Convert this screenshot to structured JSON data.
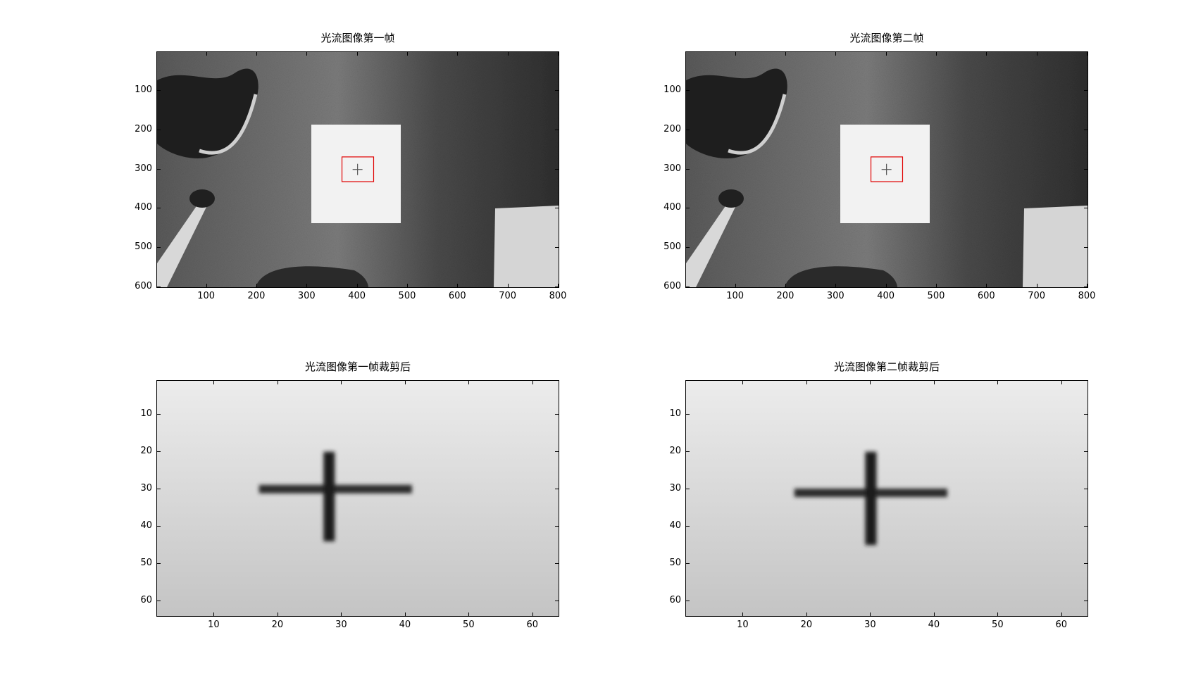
{
  "figure": {
    "panels": [
      {
        "id": "frame1",
        "title": "光流图像第一帧",
        "kind": "full",
        "x_ticks": [
          "100",
          "200",
          "300",
          "400",
          "500",
          "600",
          "700",
          "800"
        ],
        "y_ticks": [
          "100",
          "200",
          "300",
          "400",
          "500",
          "600"
        ],
        "x_range": [
          1,
          800
        ],
        "y_range": [
          1,
          600
        ],
        "roi_box": {
          "x": [
            369,
            432
          ],
          "y": [
            268,
            331
          ]
        },
        "cross": {
          "x": 400,
          "y": 300
        }
      },
      {
        "id": "frame2",
        "title": "光流图像第二帧",
        "kind": "full",
        "x_ticks": [
          "100",
          "200",
          "300",
          "400",
          "500",
          "600",
          "700",
          "800"
        ],
        "y_ticks": [
          "100",
          "200",
          "300",
          "400",
          "500",
          "600"
        ],
        "x_range": [
          1,
          800
        ],
        "y_range": [
          1,
          600
        ],
        "roi_box": {
          "x": [
            369,
            432
          ],
          "y": [
            268,
            331
          ]
        },
        "cross": {
          "x": 400,
          "y": 300
        }
      },
      {
        "id": "crop1",
        "title": "光流图像第一帧裁剪后",
        "kind": "crop",
        "x_ticks": [
          "10",
          "20",
          "30",
          "40",
          "50",
          "60"
        ],
        "y_ticks": [
          "10",
          "20",
          "30",
          "40",
          "50",
          "60"
        ],
        "x_range": [
          1,
          64
        ],
        "y_range": [
          1,
          64
        ],
        "cross": {
          "cx": 28,
          "cy": 30,
          "h_from": 17,
          "h_to": 41,
          "v_from": 20,
          "v_to": 44
        }
      },
      {
        "id": "crop2",
        "title": "光流图像第二帧裁剪后",
        "kind": "crop",
        "x_ticks": [
          "10",
          "20",
          "30",
          "40",
          "50",
          "60"
        ],
        "y_ticks": [
          "10",
          "20",
          "30",
          "40",
          "50",
          "60"
        ],
        "x_range": [
          1,
          64
        ],
        "y_range": [
          1,
          64
        ],
        "cross": {
          "cx": 30,
          "cy": 31,
          "h_from": 18,
          "h_to": 42,
          "v_from": 20,
          "v_to": 45
        }
      }
    ],
    "colors": {
      "roi_box": "#e00000",
      "carpet_light": "#8a8a8a",
      "carpet_dark": "#3a3a3a",
      "paper": "#f2f2f2"
    }
  }
}
